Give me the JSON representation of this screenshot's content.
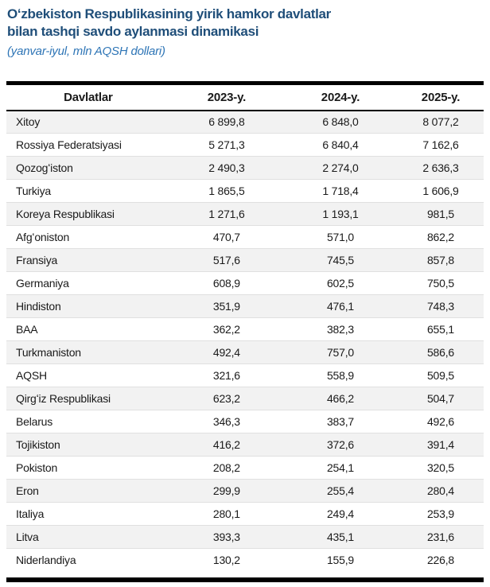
{
  "page": {
    "title_line1": "Oʻzbekiston Respublikasining yirik hamkor davlatlar",
    "title_line2": "bilan tashqi savdo aylanmasi dinamikasi",
    "subtitle": "(yanvar-iyul, mln AQSH dollari)"
  },
  "table": {
    "columns": [
      "Davlatlar",
      "2023-y.",
      "2024-y.",
      "2025-y."
    ],
    "rows": [
      {
        "country": "Xitoy",
        "y2023": "6 899,8",
        "y2024": "6 848,0",
        "y2025": "8 077,2"
      },
      {
        "country": "Rossiya Federatsiyasi",
        "y2023": "5 271,3",
        "y2024": "6 840,4",
        "y2025": "7 162,6"
      },
      {
        "country": "Qozogʻiston",
        "y2023": "2 490,3",
        "y2024": "2 274,0",
        "y2025": "2 636,3"
      },
      {
        "country": "Turkiya",
        "y2023": "1 865,5",
        "y2024": "1 718,4",
        "y2025": "1 606,9"
      },
      {
        "country": "Koreya Respublikasi",
        "y2023": "1 271,6",
        "y2024": "1 193,1",
        "y2025": "981,5"
      },
      {
        "country": "Afgʻoniston",
        "y2023": "470,7",
        "y2024": "571,0",
        "y2025": "862,2"
      },
      {
        "country": "Fransiya",
        "y2023": "517,6",
        "y2024": "745,5",
        "y2025": "857,8"
      },
      {
        "country": "Germaniya",
        "y2023": "608,9",
        "y2024": "602,5",
        "y2025": "750,5"
      },
      {
        "country": "Hindiston",
        "y2023": "351,9",
        "y2024": "476,1",
        "y2025": "748,3"
      },
      {
        "country": "BAA",
        "y2023": "362,2",
        "y2024": "382,3",
        "y2025": "655,1"
      },
      {
        "country": "Turkmaniston",
        "y2023": "492,4",
        "y2024": "757,0",
        "y2025": "586,6"
      },
      {
        "country": "AQSH",
        "y2023": "321,6",
        "y2024": "558,9",
        "y2025": "509,5"
      },
      {
        "country": "Qirgʻiz Respublikasi",
        "y2023": "623,2",
        "y2024": "466,2",
        "y2025": "504,7"
      },
      {
        "country": "Belarus",
        "y2023": "346,3",
        "y2024": "383,7",
        "y2025": "492,6"
      },
      {
        "country": "Tojikiston",
        "y2023": "416,2",
        "y2024": "372,6",
        "y2025": "391,4"
      },
      {
        "country": "Pokiston",
        "y2023": "208,2",
        "y2024": "254,1",
        "y2025": "320,5"
      },
      {
        "country": "Eron",
        "y2023": "299,9",
        "y2024": "255,4",
        "y2025": "280,4"
      },
      {
        "country": "Italiya",
        "y2023": "280,1",
        "y2024": "249,4",
        "y2025": "253,9"
      },
      {
        "country": "Litva",
        "y2023": "393,3",
        "y2024": "435,1",
        "y2025": "231,6"
      },
      {
        "country": "Niderlandiya",
        "y2023": "130,2",
        "y2024": "155,9",
        "y2025": "226,8"
      }
    ]
  },
  "colors": {
    "title_color": "#1F4E79",
    "subtitle_color": "#2E75B6",
    "stripe_color": "#F2F2F2",
    "bar_color": "#000000",
    "row_border_color": "#E0E0E0",
    "text_color": "#1A1A1A"
  }
}
